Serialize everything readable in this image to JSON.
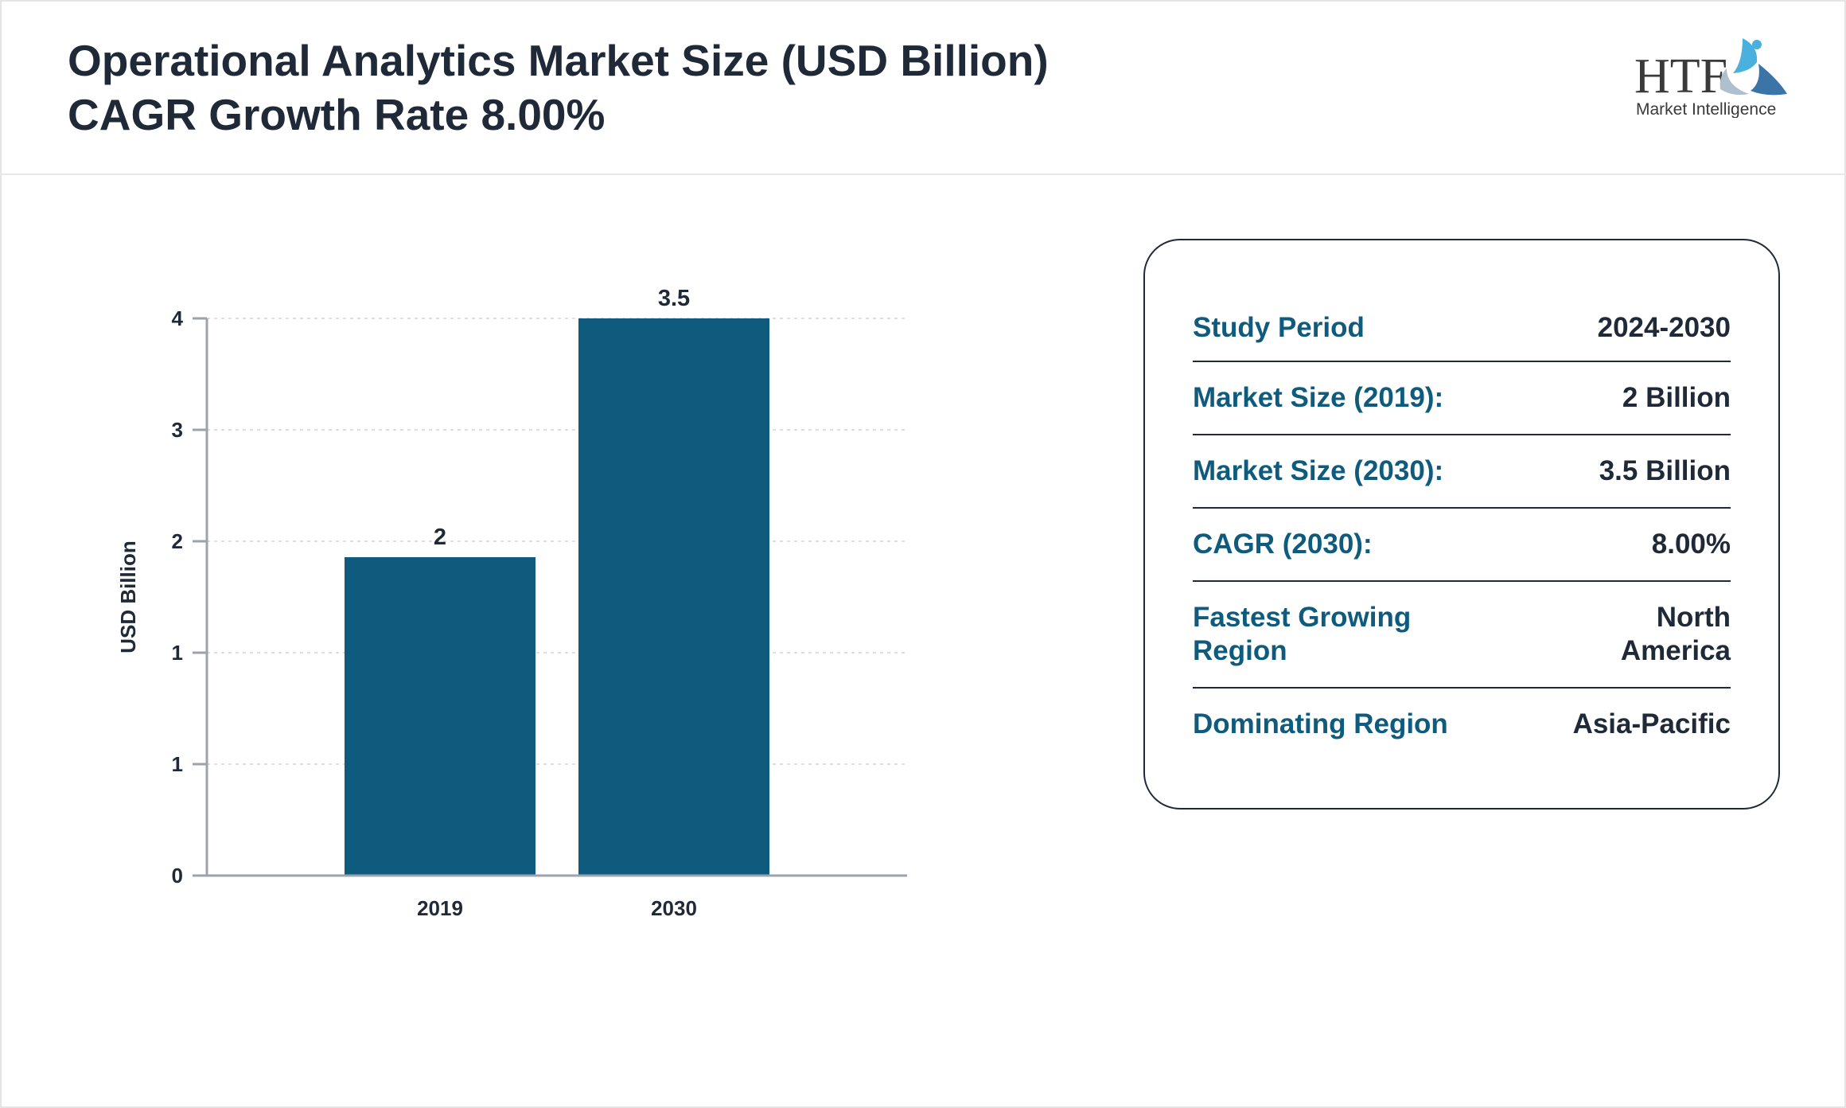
{
  "header": {
    "title_line1": "Operational Analytics Market Size (USD Billion)",
    "title_line2": "CAGR Growth Rate 8.00%",
    "logo_text": "HTF Market Intelligence"
  },
  "colors": {
    "bar": "#0e5b7e",
    "label": "#0e5b7e",
    "text": "#1f2937",
    "axis": "#9ca3af"
  },
  "chart_data": {
    "type": "bar",
    "categories": [
      "2019",
      "2030"
    ],
    "values": [
      2,
      3.5
    ],
    "data_labels": [
      "2",
      "3.5"
    ],
    "ylabel": "USD Billion",
    "ylim": [
      0,
      3.5
    ],
    "y_tick_values": [
      0,
      0.7,
      1.4,
      2.1,
      2.8,
      3.5
    ],
    "y_tick_labels": [
      "0",
      "1",
      "1",
      "2",
      "3",
      "4"
    ],
    "grid": true
  },
  "panel": {
    "rows": [
      {
        "label": "Study Period",
        "value": "2024-2030"
      },
      {
        "label": "Market Size (2019):",
        "value": "2 Billion"
      },
      {
        "label": "Market Size (2030):",
        "value": "3.5 Billion"
      },
      {
        "label": "CAGR (2030):",
        "value": "8.00%"
      },
      {
        "label": "Fastest Growing Region",
        "value": "North America"
      },
      {
        "label": "Dominating Region",
        "value": "Asia-Pacific"
      }
    ]
  }
}
